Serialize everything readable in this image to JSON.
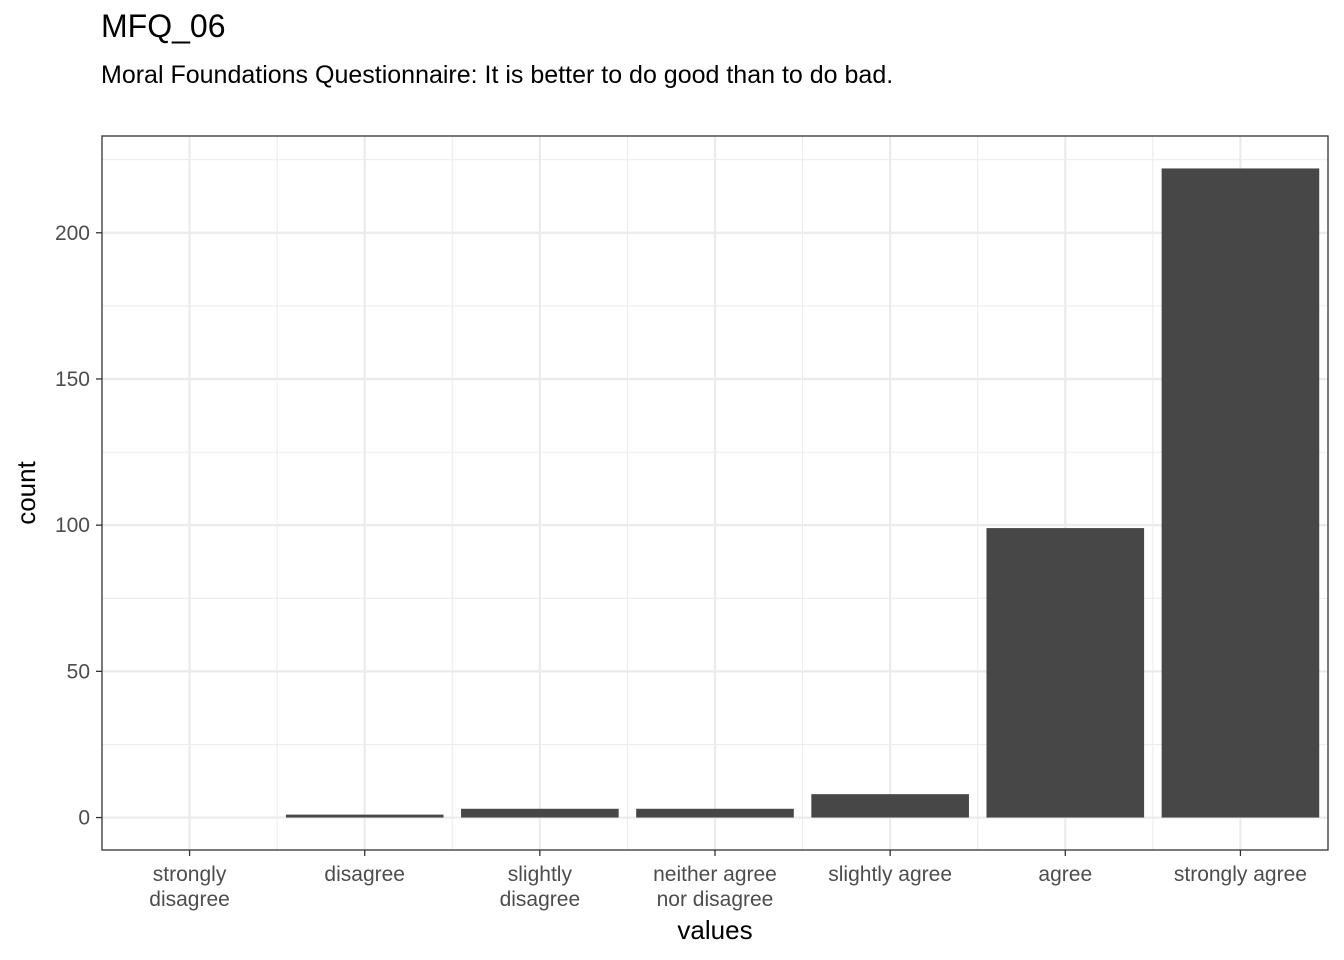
{
  "chart_data": {
    "type": "bar",
    "title": "MFQ_06",
    "subtitle": "Moral Foundations Questionnaire: It is better to do good than to do bad.",
    "xlabel": "values",
    "ylabel": "count",
    "categories": [
      [
        "strongly",
        "disagree"
      ],
      [
        "disagree"
      ],
      [
        "slightly",
        "disagree"
      ],
      [
        "neither agree",
        "nor disagree"
      ],
      [
        "slightly agree"
      ],
      [
        "agree"
      ],
      [
        "strongly agree"
      ]
    ],
    "values": [
      0,
      1,
      3,
      3,
      8,
      99,
      222
    ],
    "ylim": [
      -11.1,
      233.1
    ],
    "yticks": [
      0,
      50,
      100,
      150,
      200
    ],
    "grid": true,
    "bar_color": "#474747",
    "grid_color": "#ebebeb",
    "panel_border_color": "#333333"
  }
}
